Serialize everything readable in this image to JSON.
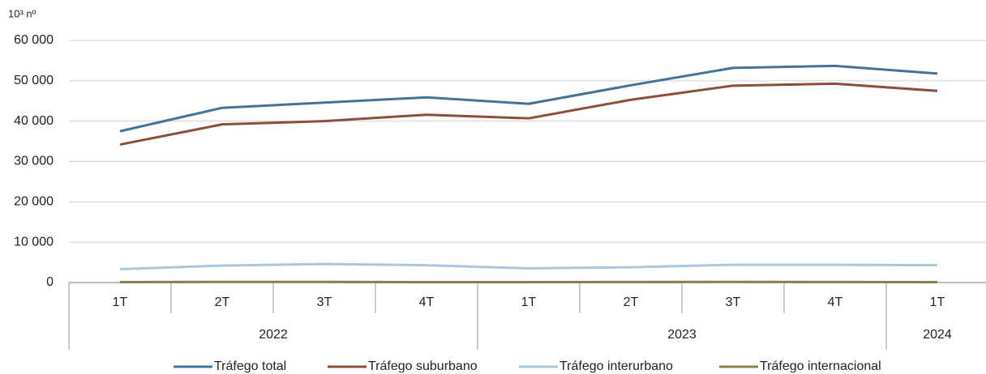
{
  "chart_data": {
    "type": "line",
    "y_axis_label": "10³ nº",
    "categories": [
      "1T",
      "2T",
      "3T",
      "4T",
      "1T",
      "2T",
      "3T",
      "4T",
      "1T"
    ],
    "groups": [
      {
        "label": "2022",
        "span": 4
      },
      {
        "label": "2023",
        "span": 4
      },
      {
        "label": "2024",
        "span": 1
      }
    ],
    "series": [
      {
        "name": "Tráfego total",
        "color": "#41729a",
        "values": [
          37500,
          43300,
          44600,
          45900,
          44300,
          48900,
          53200,
          53700,
          51800
        ]
      },
      {
        "name": "Tráfego suburbano",
        "color": "#8b4e3b",
        "values": [
          34200,
          39200,
          40000,
          41600,
          40700,
          45300,
          48800,
          49300,
          47500
        ]
      },
      {
        "name": "Tráfego interurbano",
        "color": "#a9c6dc",
        "values": [
          3300,
          4200,
          4600,
          4300,
          3500,
          3800,
          4400,
          4400,
          4300
        ]
      },
      {
        "name": "Tráfego internacional",
        "color": "#8c7b4b",
        "values": [
          100,
          150,
          150,
          100,
          100,
          120,
          150,
          130,
          100
        ]
      }
    ],
    "ylim": [
      0,
      60000
    ],
    "yticks": [
      0,
      {
        "value": 10000,
        "label": "10 000"
      },
      {
        "value": 20000,
        "label": "20 000"
      },
      {
        "value": 30000,
        "label": "30 000"
      },
      {
        "value": 40000,
        "label": "40 000"
      },
      {
        "value": 50000,
        "label": "50 000"
      },
      {
        "value": 60000,
        "label": "60 000"
      }
    ],
    "grid": true,
    "legend": "bottom"
  }
}
